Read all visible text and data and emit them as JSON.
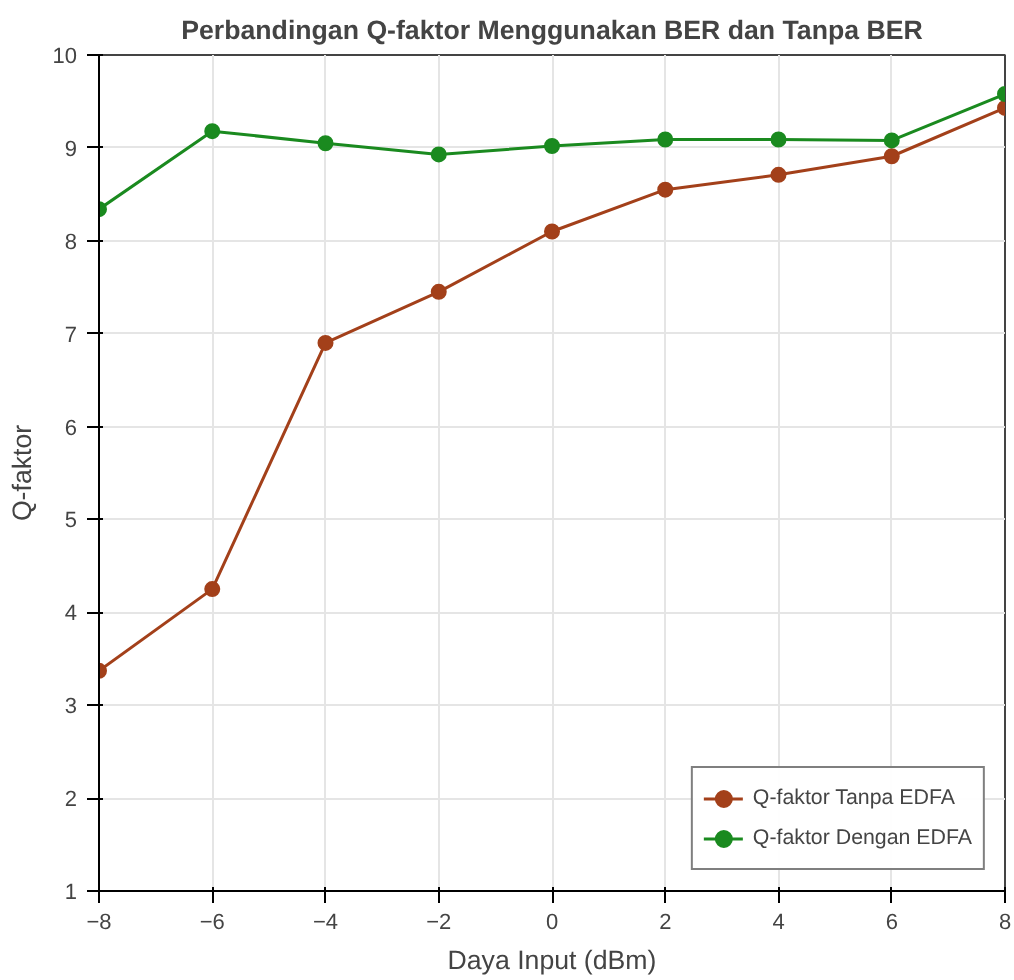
{
  "chart_data": {
    "type": "line",
    "title": "Perbandingan Q-faktor Menggunakan BER dan Tanpa BER",
    "xlabel": "Daya Input (dBm)",
    "ylabel": "Q-faktor",
    "x": [
      -8,
      -6,
      -4,
      -2,
      0,
      2,
      4,
      6,
      8
    ],
    "series": [
      {
        "name": "Q-faktor Tanpa EDFA",
        "color": "#a3401a",
        "values": [
          3.37,
          4.25,
          6.9,
          7.45,
          8.1,
          8.55,
          8.71,
          8.91,
          9.43
        ]
      },
      {
        "name": "Q-faktor Dengan EDFA",
        "color": "#1a8a1f",
        "values": [
          8.34,
          9.18,
          9.05,
          8.93,
          9.02,
          9.09,
          9.09,
          9.08,
          9.58
        ]
      }
    ],
    "xlim": [
      -8,
      8
    ],
    "ylim": [
      1,
      10
    ],
    "xticks": [
      -8,
      -6,
      -4,
      -2,
      0,
      2,
      4,
      6,
      8
    ],
    "yticks": [
      1,
      2,
      3,
      4,
      5,
      6,
      7,
      8,
      9,
      10
    ],
    "grid": true,
    "legend": "bottom right",
    "marker": "circle",
    "line_style": "solid"
  }
}
